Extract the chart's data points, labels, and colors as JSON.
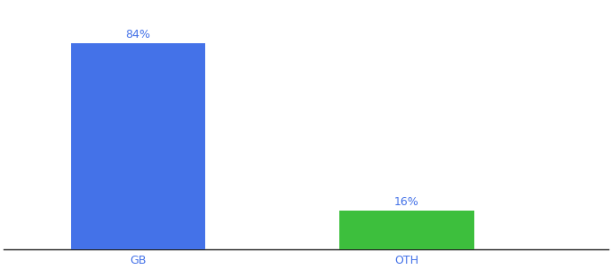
{
  "categories": [
    "GB",
    "OTH"
  ],
  "values": [
    84,
    16
  ],
  "bar_colors": [
    "#4472e8",
    "#3dbf3d"
  ],
  "label_texts": [
    "84%",
    "16%"
  ],
  "background_color": "#ffffff",
  "text_color": "#4472e8",
  "label_fontsize": 9,
  "tick_fontsize": 9,
  "ylim": [
    0,
    100
  ],
  "bar_width": 0.5
}
